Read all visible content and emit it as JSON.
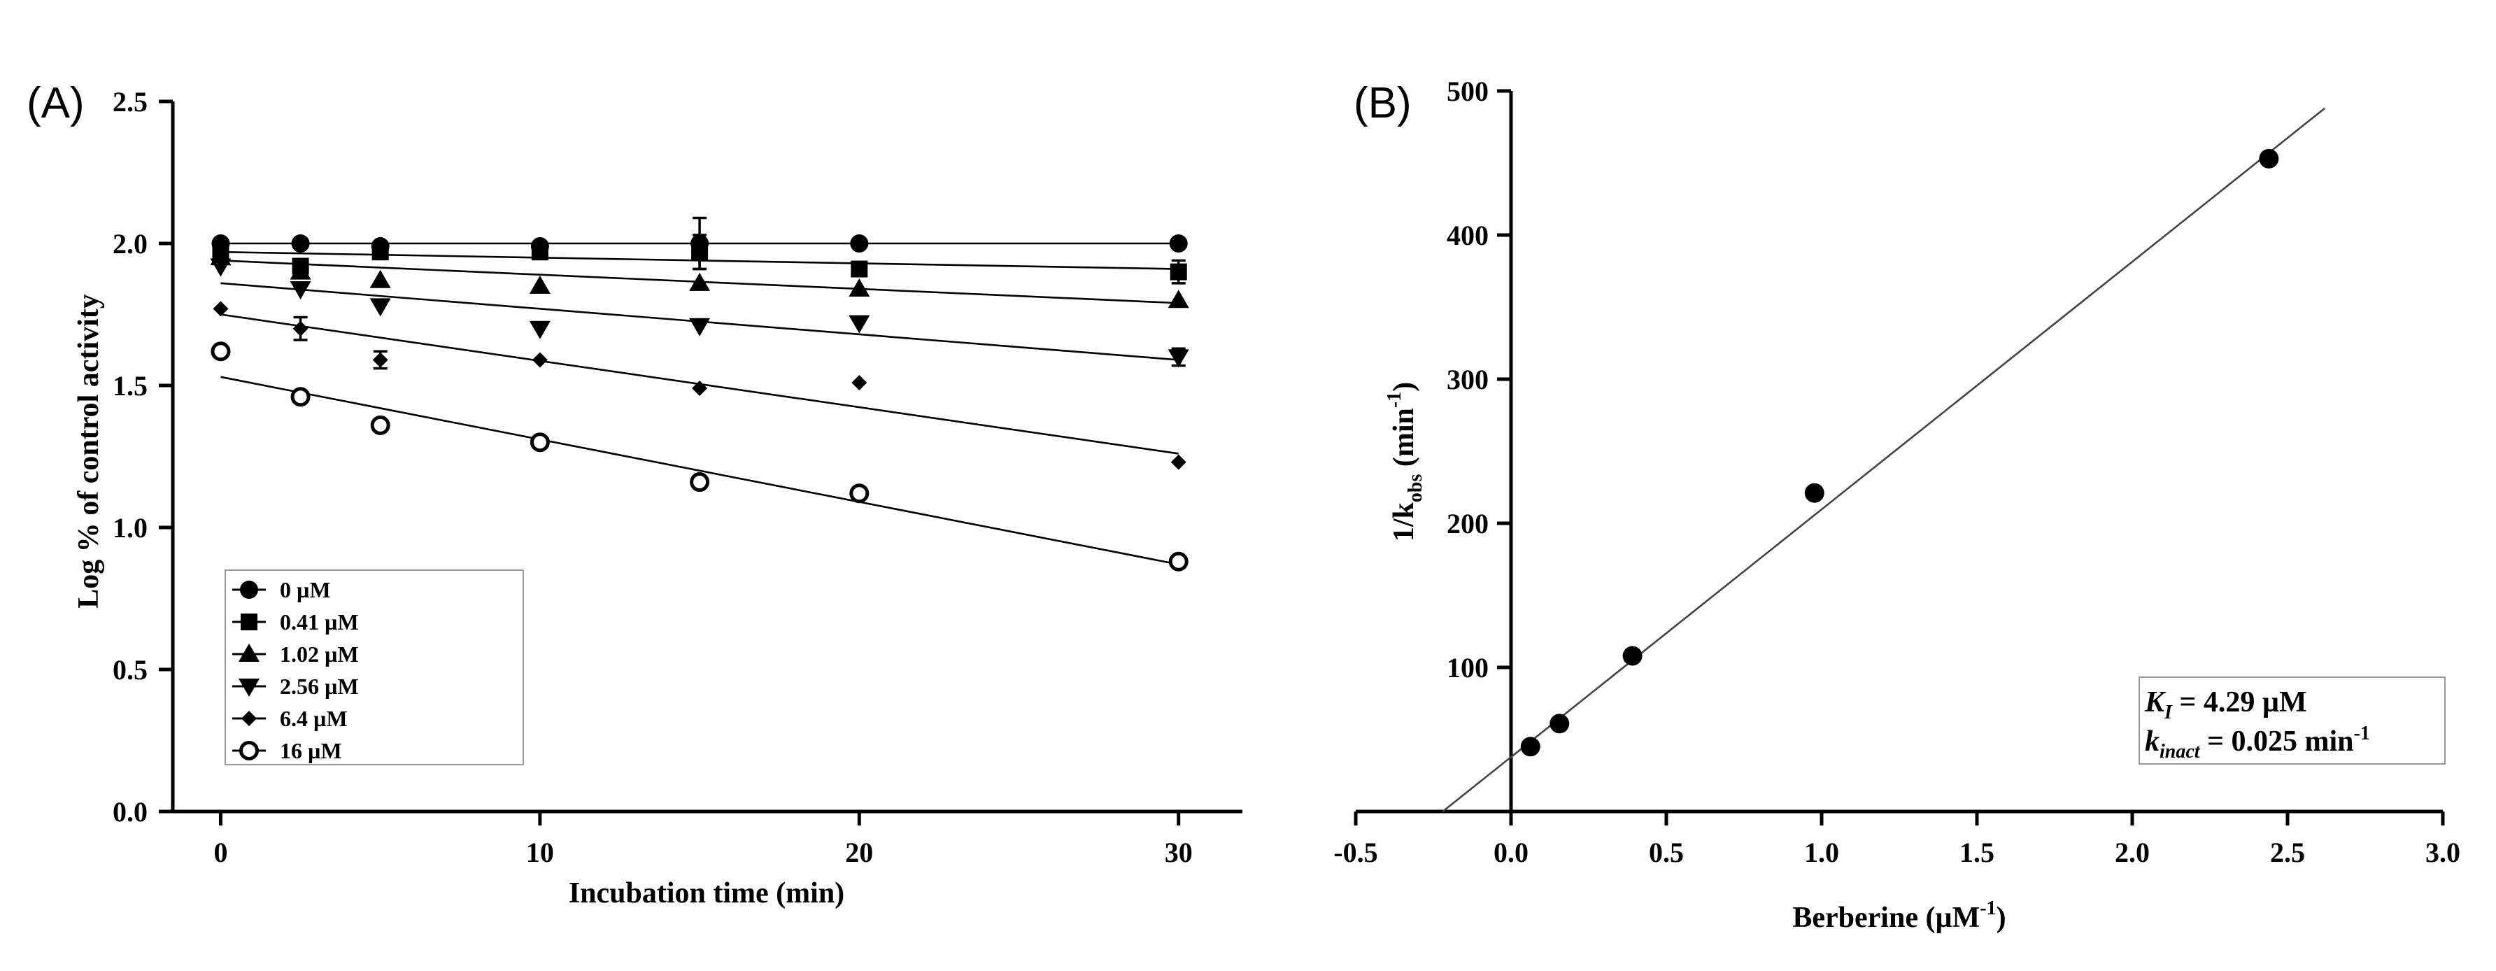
{
  "chart_data": [
    {
      "panel": "(A)",
      "type": "scatter",
      "xlabel": "Incubation time (min)",
      "ylabel": "Log % of control activity",
      "xlim": [
        -1.5,
        32
      ],
      "ylim": [
        0,
        2.5
      ],
      "xticks": [
        0,
        10,
        20,
        30
      ],
      "yticks": [
        0.0,
        0.5,
        1.0,
        1.5,
        2.0,
        2.5
      ],
      "ytick_labels": [
        "0.0",
        "0.5",
        "1.0",
        "1.5",
        "2.0",
        "2.5"
      ],
      "legend_location": "bottom-left",
      "series": [
        {
          "name": "0 µM",
          "marker": "circle",
          "x": [
            0,
            2.5,
            5,
            10,
            15,
            20,
            30
          ],
          "y": [
            2.0,
            2.0,
            1.99,
            1.99,
            2.0,
            2.0,
            2.0
          ],
          "err": [
            0,
            0,
            0,
            0,
            0.09,
            0,
            0
          ],
          "fit": [
            2.0,
            2.0
          ]
        },
        {
          "name": "0.41 µM",
          "marker": "square",
          "x": [
            0,
            2.5,
            5,
            10,
            15,
            20,
            30
          ],
          "y": [
            1.97,
            1.92,
            1.97,
            1.97,
            1.97,
            1.91,
            1.9
          ],
          "err": [
            0,
            0,
            0,
            0.02,
            0.06,
            0,
            0.04
          ],
          "fit": [
            1.97,
            1.91
          ]
        },
        {
          "name": "1.02 µM",
          "marker": "triangle-up",
          "x": [
            0,
            2.5,
            5,
            10,
            15,
            20,
            30
          ],
          "y": [
            1.95,
            1.9,
            1.87,
            1.85,
            1.86,
            1.84,
            1.8
          ],
          "err": [
            0,
            0,
            0,
            0,
            0,
            0,
            0
          ],
          "fit": [
            1.94,
            1.79
          ]
        },
        {
          "name": "2.56 µM",
          "marker": "triangle-down",
          "x": [
            0,
            2.5,
            5,
            10,
            15,
            20,
            30
          ],
          "y": [
            1.92,
            1.84,
            1.78,
            1.7,
            1.71,
            1.72,
            1.6
          ],
          "err": [
            0,
            0,
            0,
            0,
            0,
            0,
            0.03
          ],
          "fit": [
            1.86,
            1.59
          ]
        },
        {
          "name": "6.4 µM",
          "marker": "diamond",
          "x": [
            0,
            2.5,
            5,
            10,
            15,
            20,
            30
          ],
          "y": [
            1.77,
            1.7,
            1.59,
            1.59,
            1.49,
            1.51,
            1.23
          ],
          "err": [
            0,
            0.04,
            0.03,
            0,
            0,
            0,
            0
          ],
          "fit": [
            1.75,
            1.26
          ]
        },
        {
          "name": "16 µM",
          "marker": "open-circle",
          "x": [
            0,
            2.5,
            5,
            10,
            15,
            20,
            30
          ],
          "y": [
            1.62,
            1.46,
            1.36,
            1.3,
            1.16,
            1.12,
            0.88
          ],
          "err": [
            0,
            0,
            0,
            0,
            0,
            0,
            0
          ],
          "fit": [
            1.53,
            0.87
          ]
        }
      ]
    },
    {
      "panel": "(B)",
      "type": "scatter",
      "xlabel": "Berberine (µM",
      "xlabel_sup": "-1",
      "xlabel_tail": ")",
      "ylabel": "1/k",
      "ylabel_sub": "obs",
      "ylabel_tail": " (min",
      "ylabel_sup": "-1",
      "ylabel_end": ")",
      "xlim": [
        -0.5,
        3.0
      ],
      "ylim": [
        0,
        500
      ],
      "xticks": [
        -0.5,
        0.0,
        0.5,
        1.0,
        1.5,
        2.0,
        2.5,
        3.0
      ],
      "xtick_labels": [
        "-0.5",
        "0.0",
        "0.5",
        "1.0",
        "1.5",
        "2.0",
        "2.5",
        "3.0"
      ],
      "yticks": [
        100,
        200,
        300,
        400,
        500
      ],
      "ytick_labels": [
        "100",
        "200",
        "300",
        "400",
        "500"
      ],
      "points": {
        "x": [
          0.0625,
          0.156,
          0.391,
          0.977,
          2.44
        ],
        "y": [
          45,
          61,
          108,
          221,
          453
        ]
      },
      "fit_line": {
        "x": [
          -0.22,
          2.62
        ],
        "y": [
          0,
          488
        ]
      },
      "annotation": {
        "line1": {
          "sym": "K",
          "sub": "I",
          "text": " = 4.29 µM"
        },
        "line2": {
          "sym": "k",
          "sub": "inact",
          "text": " = 0.025 min",
          "sup": "-1"
        }
      }
    }
  ]
}
